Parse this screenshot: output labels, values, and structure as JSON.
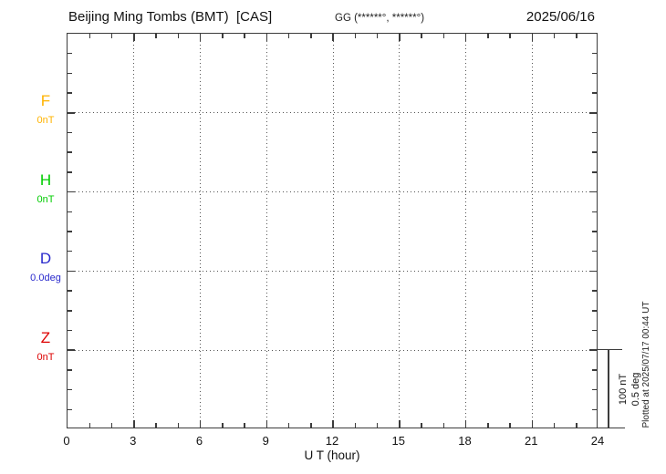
{
  "header": {
    "title": "Beijing Ming Tombs (BMT)  [CAS]",
    "coords_note": "GG (******°, ******°)",
    "date": "2025/06/16"
  },
  "chart_data": {
    "type": "line",
    "title": "Beijing Ming Tombs (BMT)  [CAS]",
    "date": "2025/06/16",
    "x_axis": {
      "label": "U T (hour)",
      "range": [
        0,
        24
      ],
      "tick_labels": [
        "0",
        "3",
        "6",
        "9",
        "12",
        "15",
        "18",
        "21",
        "24"
      ],
      "tick_hours": [
        0,
        3,
        6,
        9,
        12,
        15,
        18,
        21,
        24
      ],
      "minor_tick_interval_hours": 1,
      "grid_hours": [
        3,
        6,
        9,
        12,
        15,
        18,
        21
      ],
      "grid_style": "dotted"
    },
    "channels": [
      {
        "id": "F",
        "label": "F",
        "unit_label": "0nT",
        "baseline_value": 0,
        "color": "#FFB300",
        "values": []
      },
      {
        "id": "H",
        "label": "H",
        "unit_label": "0nT",
        "baseline_value": 0,
        "color": "#00CC00",
        "values": []
      },
      {
        "id": "D",
        "label": "D",
        "unit_label": "0.0deg",
        "baseline_value": 0,
        "color": "#2929CC",
        "values": []
      },
      {
        "id": "Z",
        "label": "Z",
        "unit_label": "0nT",
        "baseline_value": 0,
        "color": "#DD0000",
        "values": []
      }
    ],
    "baseline_grid_style": "dotted",
    "note": "No data traces visible; only dotted zero baselines for each channel",
    "scale_bar": {
      "lines": [
        "100 nT",
        "0.5 deg"
      ],
      "spans": "one channel interval"
    }
  },
  "footer": {
    "plotted_at": "Plotted at 2025/07/17 00:44 UT"
  }
}
